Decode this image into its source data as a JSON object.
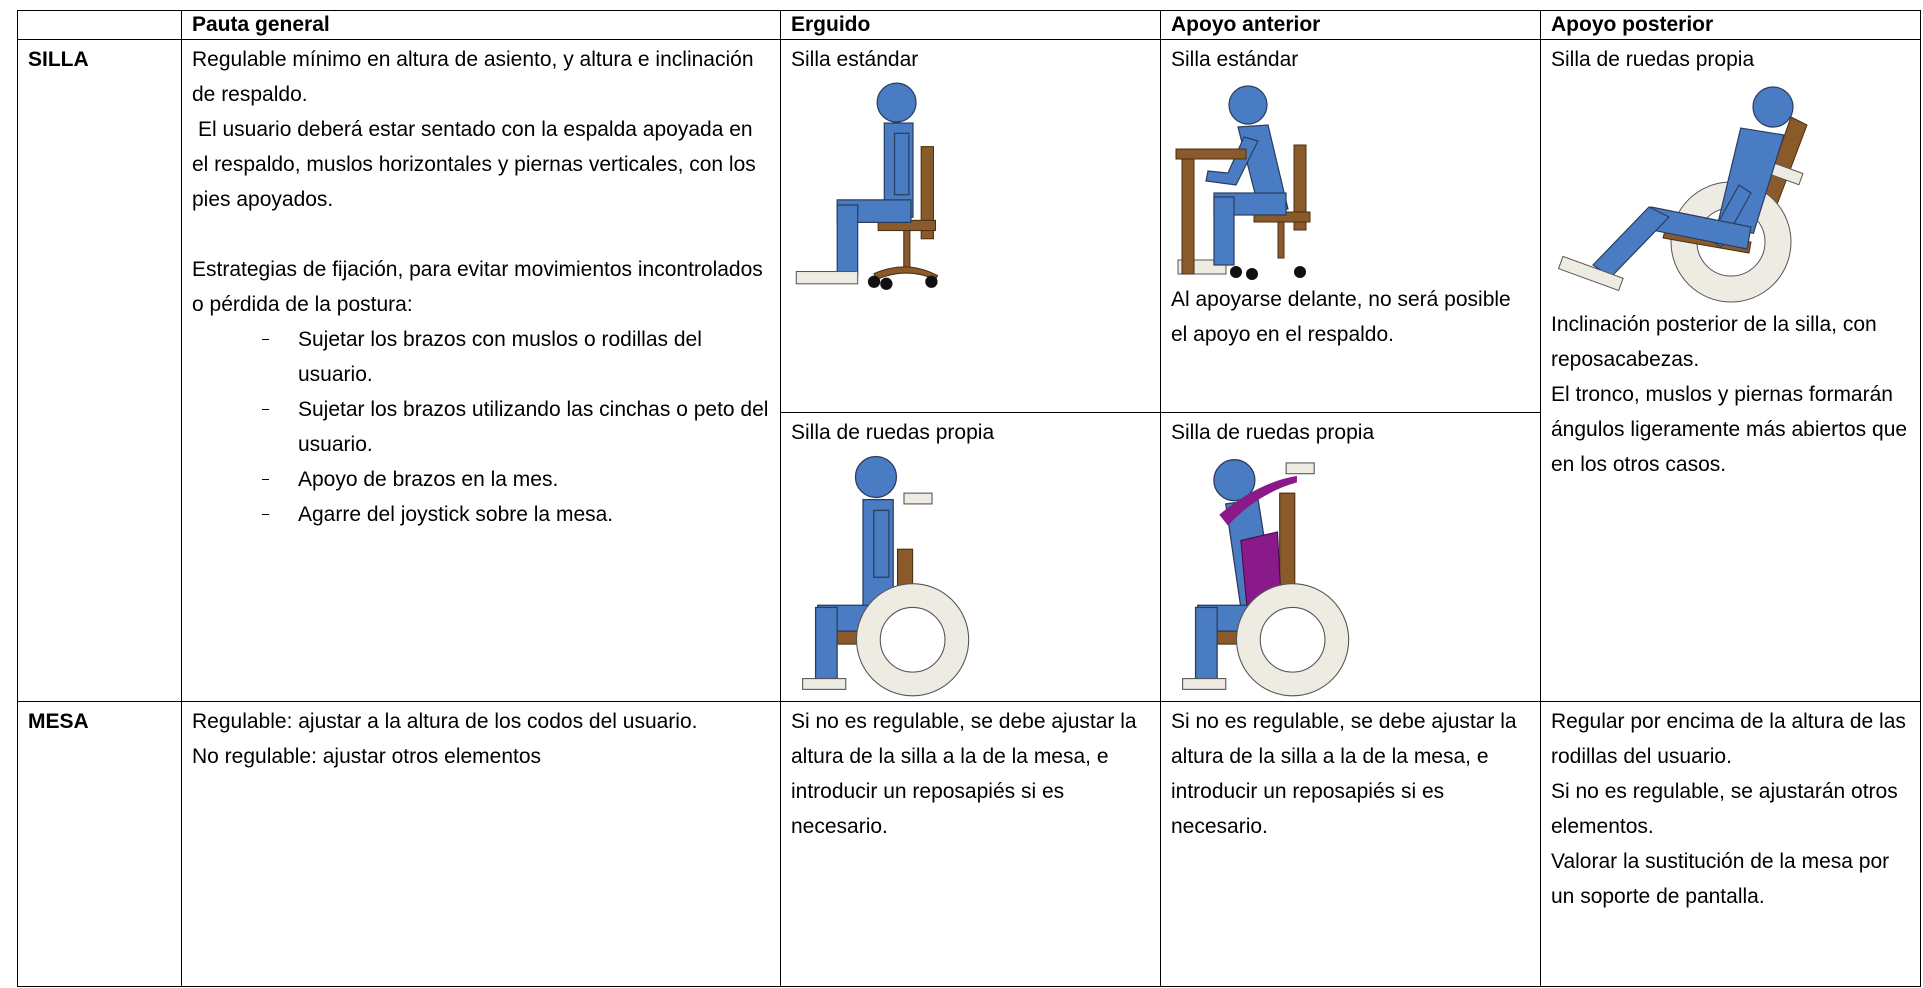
{
  "table": {
    "header": [
      "Pauta general",
      "Erguido",
      "Apoyo anterior",
      "Apoyo posterior"
    ],
    "rows": [
      {
        "label": "SILLA",
        "general": {
          "paragraphs": [
            "Regulable mínimo en altura de asiento, y altura e inclinación de respaldo.",
            "El usuario deberá estar sentado con la espalda apoyada en el respaldo, muslos horizontales y piernas verticales, con los pies apoyados.",
            "Estrategias de fijación, para evitar movimientos incontrolados o pérdida de la postura:"
          ],
          "list": [
            "Sujetar los brazos con muslos o rodillas del usuario.",
            "Sujetar los brazos utilizando las cinchas o peto del usuario.",
            "Apoyo de brazos en la mes.",
            "Agarre del joystick sobre la mesa."
          ]
        },
        "erguido": [
          {
            "caption": "Silla estándar"
          },
          {
            "caption": "Silla de ruedas propia"
          }
        ],
        "anterior": [
          {
            "caption": "Silla estándar",
            "note": "Al apoyarse delante, no será posible el apoyo en el respaldo."
          },
          {
            "caption": "Silla de ruedas propia"
          }
        ],
        "posterior": {
          "caption": "Silla de ruedas propia",
          "note": [
            "Inclinación posterior de la silla, con reposacabezas.",
            "El tronco, muslos y piernas formarán ángulos ligeramente más abiertos que en los otros casos."
          ]
        }
      },
      {
        "label": "MESA",
        "general": [
          "Regulable: ajustar a la altura de los codos del usuario.",
          "No regulable: ajustar otros elementos"
        ],
        "erguido": "Si no es regulable, se debe ajustar la altura de la silla a la de la mesa, e introducir un reposapiés si es necesario.",
        "anterior": "Si no es regulable, se debe ajustar la altura de la silla a la de la mesa, e introducir un reposapiés si es necesario.",
        "posterior": [
          "Regular por encima de la altura de las rodillas del usuario.",
          "Si no es regulable, se ajustarán otros elementos.",
          "Valorar la sustitución de la mesa por un soporte de pantalla."
        ]
      }
    ]
  }
}
